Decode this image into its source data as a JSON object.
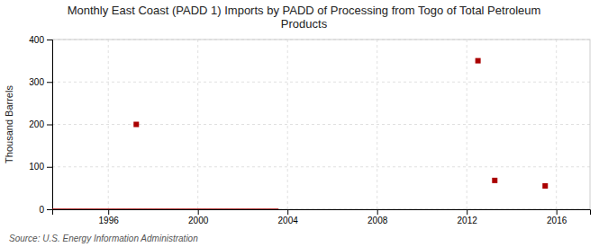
{
  "chart_data": {
    "type": "scatter",
    "title": "Monthly East Coast (PADD 1) Imports by PADD of Processing from Togo of Total Petroleum\nProducts",
    "y_label": "Thousand Barrels",
    "annotations": [
      "Source: U.S. Energy Information Administration"
    ],
    "series": [
      {
        "type": "line",
        "color": "#aa0000",
        "x": [
          1993.5,
          2003.6
        ],
        "values": [
          0,
          0
        ]
      },
      {
        "type": "scatter",
        "color": "#aa0000",
        "marker": "square",
        "x": [
          1997.25,
          2012.5,
          2013.25,
          2015.5
        ],
        "values": [
          200,
          350,
          68,
          55
        ]
      }
    ],
    "xlim": [
      1993.5,
      2017.5
    ],
    "ylim": [
      0,
      400
    ],
    "xticks": [
      1996,
      2000,
      2004,
      2008,
      2012,
      2016
    ],
    "yticks": [
      0,
      100,
      200,
      300,
      400
    ],
    "grid": true
  }
}
